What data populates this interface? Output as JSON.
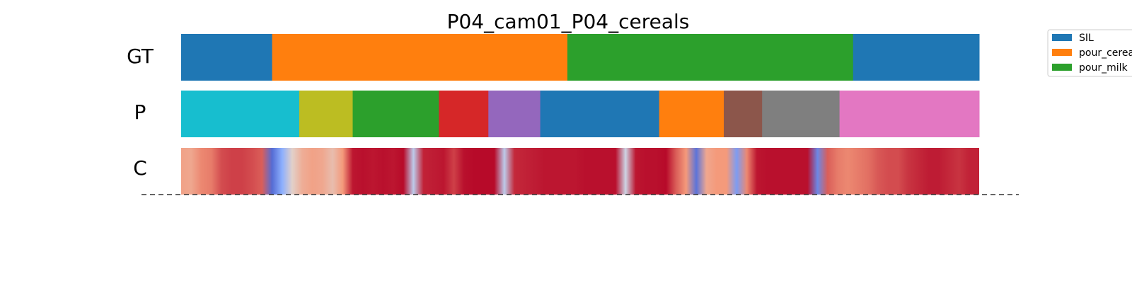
{
  "chart_data": {
    "type": "segmentation_timeline",
    "title": "P04_cam01_P04_cereals",
    "rows": [
      {
        "label": "GT",
        "segments": [
          {
            "label": "SIL",
            "start": 0.0,
            "end": 0.114,
            "color": "#1f77b4"
          },
          {
            "label": "pour_cereals",
            "start": 0.114,
            "end": 0.484,
            "color": "#ff7f0e"
          },
          {
            "label": "pour_milk",
            "start": 0.484,
            "end": 0.842,
            "color": "#2ca02c"
          },
          {
            "label": "SIL",
            "start": 0.842,
            "end": 1.0,
            "color": "#1f77b4"
          }
        ]
      },
      {
        "label": "P",
        "segments": [
          {
            "start": 0.0,
            "end": 0.148,
            "color": "#17becf"
          },
          {
            "start": 0.148,
            "end": 0.215,
            "color": "#bcbd22"
          },
          {
            "start": 0.215,
            "end": 0.323,
            "color": "#2ca02c"
          },
          {
            "start": 0.323,
            "end": 0.385,
            "color": "#d62728"
          },
          {
            "start": 0.385,
            "end": 0.45,
            "color": "#9467bd"
          },
          {
            "start": 0.45,
            "end": 0.599,
            "color": "#1f77b4"
          },
          {
            "start": 0.599,
            "end": 0.68,
            "color": "#ff7f0e"
          },
          {
            "start": 0.68,
            "end": 0.728,
            "color": "#8c564b"
          },
          {
            "start": 0.728,
            "end": 0.825,
            "color": "#7f7f7f"
          },
          {
            "start": 0.825,
            "end": 1.0,
            "color": "#e377c2"
          }
        ]
      },
      {
        "label": "C",
        "colormap": "coolwarm",
        "confidence": [
          0.72,
          0.7,
          0.78,
          0.8,
          0.88,
          0.9,
          0.9,
          0.88,
          0.85,
          0.08,
          0.25,
          0.55,
          0.68,
          0.72,
          0.7,
          0.62,
          0.75,
          0.97,
          0.98,
          0.97,
          0.98,
          0.97,
          0.99,
          0.4,
          0.95,
          0.96,
          0.97,
          0.9,
          0.98,
          0.99,
          0.99,
          0.99,
          0.4,
          0.94,
          0.95,
          0.96,
          0.97,
          0.97,
          0.97,
          0.97,
          0.98,
          0.98,
          0.98,
          0.98,
          0.45,
          0.97,
          0.98,
          0.98,
          0.99,
          0.85,
          0.75,
          0.1,
          0.7,
          0.75,
          0.75,
          0.2,
          0.78,
          0.97,
          0.98,
          0.98,
          0.98,
          0.98,
          0.98,
          0.15,
          0.85,
          0.8,
          0.78,
          0.8,
          0.82,
          0.86,
          0.88,
          0.88,
          0.92,
          0.94,
          0.96,
          0.96,
          0.94,
          0.92,
          0.95,
          0.95
        ]
      }
    ],
    "legend": {
      "placement": "top-right",
      "items": [
        {
          "label": "SIL",
          "color": "#1f77b4"
        },
        {
          "label": "pour_cereals",
          "color": "#ff7f0e"
        },
        {
          "label": "pour_milk",
          "color": "#2ca02c"
        }
      ]
    },
    "baseline": "dashed"
  }
}
